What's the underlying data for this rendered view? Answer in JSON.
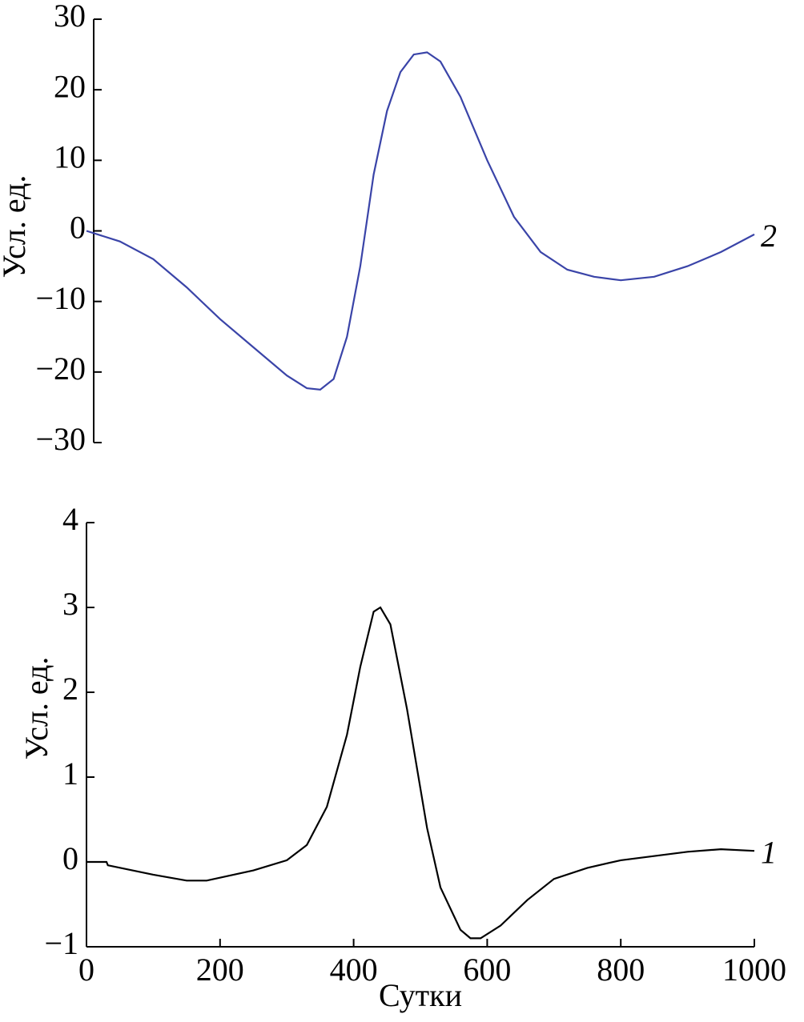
{
  "chart_data": [
    {
      "type": "line",
      "y_label": "Усл. ед.",
      "ylim": [
        -30,
        30
      ],
      "yticks": [
        {
          "value": -30,
          "label": "−30"
        },
        {
          "value": -20,
          "label": "−20"
        },
        {
          "value": -10,
          "label": "−10"
        },
        0,
        10,
        20,
        30
      ],
      "xlim": [
        0,
        1000
      ],
      "x": [
        0,
        50,
        100,
        150,
        200,
        250,
        300,
        330,
        350,
        370,
        390,
        410,
        430,
        450,
        470,
        490,
        510,
        530,
        560,
        600,
        640,
        680,
        720,
        760,
        800,
        850,
        900,
        950,
        1000
      ],
      "series": [
        {
          "name": "2",
          "color": "#3a44a8",
          "values": [
            0,
            -1.5,
            -4,
            -8,
            -12.5,
            -16.5,
            -20.5,
            -22.3,
            -22.5,
            -21,
            -15,
            -5,
            8,
            17,
            22.5,
            25,
            25.3,
            24,
            19,
            10,
            2,
            -3,
            -5.5,
            -6.5,
            -7,
            -6.5,
            -5,
            -3,
            -0.5
          ]
        }
      ]
    },
    {
      "type": "line",
      "y_label": "Усл. ед.",
      "x_label": "Сутки",
      "ylim": [
        -1,
        4
      ],
      "yticks": [
        {
          "value": -1,
          "label": "−1"
        },
        0,
        1,
        2,
        3,
        4
      ],
      "xlim": [
        0,
        1000
      ],
      "xticks": [
        0,
        200,
        400,
        600,
        800,
        1000
      ],
      "x": [
        0,
        30,
        32,
        100,
        150,
        180,
        250,
        300,
        330,
        360,
        390,
        410,
        430,
        440,
        455,
        480,
        510,
        530,
        560,
        575,
        590,
        620,
        660,
        700,
        750,
        800,
        900,
        950,
        1000
      ],
      "series": [
        {
          "name": "1",
          "color": "#000000",
          "values": [
            0,
            0,
            -0.04,
            -0.15,
            -0.22,
            -0.22,
            -0.1,
            0.02,
            0.2,
            0.65,
            1.5,
            2.3,
            2.95,
            3.0,
            2.8,
            1.8,
            0.4,
            -0.3,
            -0.8,
            -0.9,
            -0.9,
            -0.75,
            -0.45,
            -0.2,
            -0.07,
            0.02,
            0.12,
            0.15,
            0.13
          ]
        }
      ]
    }
  ]
}
